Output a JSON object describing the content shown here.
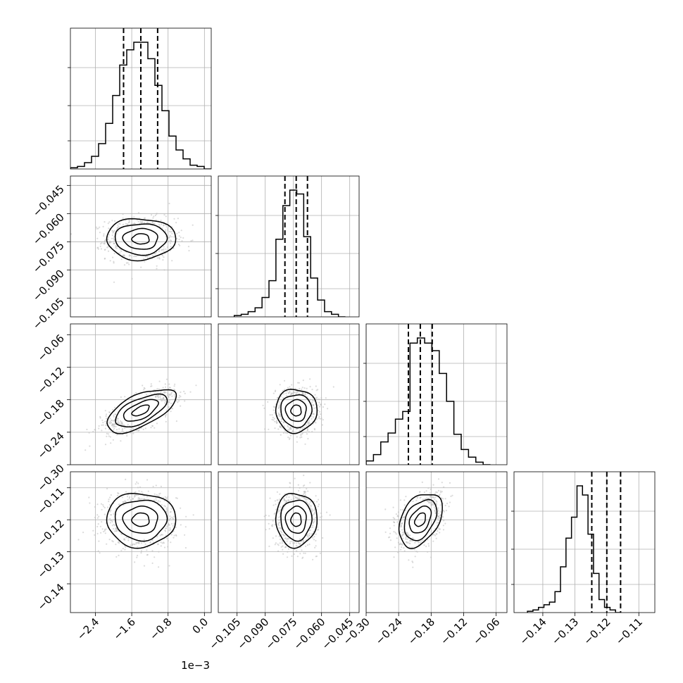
{
  "chart_data": {
    "type": "corner",
    "parameters": [
      {
        "range": [
          -2.95,
          0.15
        ],
        "ticks": [
          -2.4,
          -1.6,
          -0.8,
          0.0
        ],
        "tick_labels": [
          "−2.4",
          "−1.6",
          "−0.8",
          "0.0"
        ],
        "offset_text": "1e−3",
        "mean": -1.4,
        "sigma": 0.38,
        "quantiles": [
          -1.78,
          -1.4,
          -1.03
        ],
        "hist": {
          "edges_start": -2.95,
          "bin_width": 0.155,
          "counts": [
            0.01,
            0.02,
            0.05,
            0.1,
            0.2,
            0.36,
            0.58,
            0.82,
            0.94,
            1.0,
            1.0,
            0.87,
            0.66,
            0.46,
            0.26,
            0.15,
            0.08,
            0.03,
            0.02,
            0.0
          ]
        }
      },
      {
        "range": [
          -0.115,
          -0.04
        ],
        "ticks": [
          -0.105,
          -0.09,
          -0.075,
          -0.06,
          -0.045
        ],
        "tick_labels": [
          "−0.105",
          "−0.090",
          "−0.075",
          "−0.060",
          "−0.045"
        ],
        "mean": -0.0735,
        "sigma": 0.0055,
        "quantiles": [
          -0.0795,
          -0.0735,
          -0.0675
        ],
        "hist": {
          "edges_start": -0.1065,
          "bin_width": 0.0037,
          "counts": [
            0.01,
            0.02,
            0.04,
            0.07,
            0.15,
            0.28,
            0.6,
            0.86,
            0.98,
            0.95,
            0.62,
            0.3,
            0.13,
            0.04,
            0.02,
            0.0
          ]
        }
      },
      {
        "range": [
          -0.3,
          -0.04
        ],
        "ticks": [
          -0.3,
          -0.24,
          -0.18,
          -0.12,
          -0.06
        ],
        "tick_labels": [
          "−0.30",
          "−0.24",
          "−0.18",
          "−0.12",
          "−0.06"
        ],
        "mean": -0.2,
        "sigma": 0.02,
        "quantiles": [
          -0.222,
          -0.2,
          -0.178
        ],
        "hist": {
          "edges_start": -0.3,
          "bin_width": 0.0135,
          "counts": [
            0.03,
            0.08,
            0.18,
            0.25,
            0.36,
            0.42,
            0.96,
            1.0,
            0.96,
            0.9,
            0.72,
            0.5,
            0.24,
            0.12,
            0.06,
            0.02,
            0.0
          ]
        }
      },
      {
        "range": [
          -0.149,
          -0.105
        ],
        "ticks": [
          -0.14,
          -0.13,
          -0.12,
          -0.11
        ],
        "tick_labels": [
          "−0.14",
          "−0.13",
          "−0.12",
          "−0.11"
        ],
        "mean": -0.12,
        "sigma": 0.0042,
        "quantiles": [
          -0.1247,
          -0.12,
          -0.1157
        ],
        "hist": {
          "edges_start": -0.1448,
          "bin_width": 0.00172,
          "counts": [
            0.01,
            0.02,
            0.04,
            0.06,
            0.08,
            0.16,
            0.35,
            0.57,
            0.73,
            0.97,
            0.9,
            0.6,
            0.3,
            0.1,
            0.04,
            0.02,
            0.0
          ]
        }
      }
    ],
    "correlations": [
      {
        "row": 1,
        "col": 0,
        "rho": 0.0
      },
      {
        "row": 2,
        "col": 0,
        "rho": 0.62
      },
      {
        "row": 2,
        "col": 1,
        "rho": 0.0
      },
      {
        "row": 3,
        "col": 0,
        "rho": 0.0
      },
      {
        "row": 3,
        "col": 1,
        "rho": 0.0
      },
      {
        "row": 3,
        "col": 2,
        "rho": 0.38
      }
    ],
    "contour_levels_sigma": [
      0.5,
      1.0,
      1.5,
      2.0
    ],
    "n_scatter_per_panel": 900,
    "grid": true,
    "colors": {
      "hist_line": "#000000",
      "quantile_line": "#000000",
      "scatter": "#bdbdbd",
      "density_max": "#000000",
      "grid": "#b0b0b0"
    }
  }
}
